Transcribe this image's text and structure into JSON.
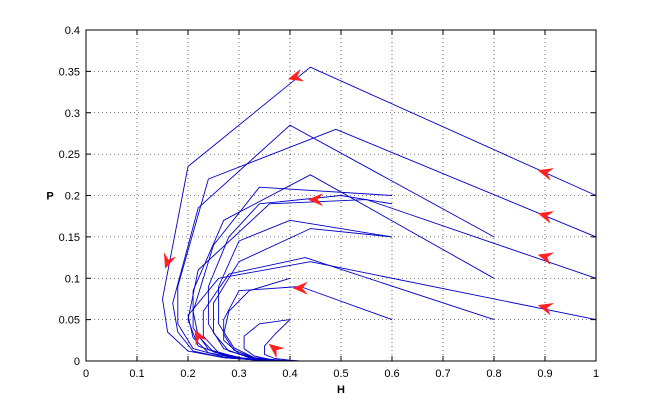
{
  "chart_data": {
    "type": "line",
    "title": "",
    "xlabel": "H",
    "ylabel": "P",
    "xlim": [
      0,
      1
    ],
    "ylim": [
      0,
      0.4
    ],
    "xticks": [
      "0",
      "0.1",
      "0.2",
      "0.3",
      "0.4",
      "0.5",
      "0.6",
      "0.7",
      "0.8",
      "0.9",
      "1"
    ],
    "yticks": [
      "0",
      "0.05",
      "0.1",
      "0.15",
      "0.2",
      "0.25",
      "0.3",
      "0.35",
      "0.4"
    ],
    "grid": true,
    "grid_style": "dotted",
    "legend": "none",
    "series_color": "#0000cc",
    "arrow_color": "#ff2020",
    "series": [
      {
        "x": [
          1.0,
          0.44,
          0.2,
          0.15,
          0.16,
          0.2,
          0.27,
          0.34,
          0.4,
          0.42
        ],
        "y": [
          0.2,
          0.355,
          0.235,
          0.075,
          0.035,
          0.012,
          0.004,
          0.001,
          0.0,
          0.0
        ]
      },
      {
        "x": [
          1.0,
          0.49,
          0.24,
          0.18,
          0.18,
          0.21,
          0.27,
          0.34,
          0.41
        ],
        "y": [
          0.15,
          0.28,
          0.22,
          0.09,
          0.045,
          0.015,
          0.005,
          0.001,
          0.0
        ]
      },
      {
        "x": [
          1.0,
          0.55,
          0.36,
          0.22,
          0.2,
          0.22,
          0.28,
          0.35,
          0.41
        ],
        "y": [
          0.1,
          0.195,
          0.19,
          0.11,
          0.05,
          0.018,
          0.005,
          0.001,
          0.0
        ]
      },
      {
        "x": [
          1.0,
          0.44,
          0.26,
          0.2,
          0.21,
          0.24,
          0.3,
          0.36,
          0.41
        ],
        "y": [
          0.05,
          0.12,
          0.1,
          0.055,
          0.028,
          0.01,
          0.003,
          0.0,
          0.0
        ]
      },
      {
        "x": [
          0.8,
          0.4,
          0.22,
          0.17,
          0.18,
          0.21,
          0.27,
          0.34,
          0.4
        ],
        "y": [
          0.15,
          0.285,
          0.185,
          0.07,
          0.035,
          0.012,
          0.004,
          0.001,
          0.0
        ]
      },
      {
        "x": [
          0.8,
          0.44,
          0.27,
          0.21,
          0.21,
          0.24,
          0.3,
          0.36,
          0.41
        ],
        "y": [
          0.1,
          0.225,
          0.17,
          0.085,
          0.04,
          0.014,
          0.004,
          0.001,
          0.0
        ]
      },
      {
        "x": [
          0.8,
          0.43,
          0.28,
          0.23,
          0.23,
          0.26,
          0.31,
          0.37,
          0.41
        ],
        "y": [
          0.05,
          0.125,
          0.105,
          0.06,
          0.03,
          0.01,
          0.003,
          0.0,
          0.0
        ]
      },
      {
        "x": [
          0.6,
          0.34,
          0.25,
          0.21,
          0.22,
          0.25,
          0.3,
          0.36,
          0.41
        ],
        "y": [
          0.2,
          0.21,
          0.14,
          0.06,
          0.03,
          0.011,
          0.003,
          0.0,
          0.0
        ]
      },
      {
        "x": [
          0.6,
          0.5,
          0.34,
          0.28,
          0.24,
          0.24,
          0.27,
          0.32,
          0.37,
          0.41
        ],
        "y": [
          0.19,
          0.2,
          0.19,
          0.15,
          0.09,
          0.045,
          0.015,
          0.004,
          0.001,
          0.0
        ]
      },
      {
        "x": [
          0.6,
          0.44,
          0.3,
          0.25,
          0.25,
          0.28,
          0.33,
          0.38,
          0.41
        ],
        "y": [
          0.15,
          0.16,
          0.12,
          0.07,
          0.034,
          0.012,
          0.003,
          0.0,
          0.0
        ]
      },
      {
        "x": [
          0.6,
          0.4,
          0.3,
          0.26,
          0.26,
          0.29,
          0.33,
          0.38,
          0.41
        ],
        "y": [
          0.15,
          0.17,
          0.145,
          0.09,
          0.045,
          0.016,
          0.004,
          0.001,
          0.0
        ]
      },
      {
        "x": [
          0.6,
          0.42,
          0.3,
          0.27,
          0.27,
          0.3,
          0.34,
          0.38,
          0.41
        ],
        "y": [
          0.05,
          0.09,
          0.085,
          0.05,
          0.025,
          0.009,
          0.002,
          0.0,
          0.0
        ]
      },
      {
        "x": [
          0.4,
          0.32,
          0.28,
          0.27,
          0.29,
          0.33,
          0.37,
          0.41
        ],
        "y": [
          0.1,
          0.085,
          0.06,
          0.032,
          0.013,
          0.004,
          0.001,
          0.0
        ]
      },
      {
        "x": [
          0.4,
          0.34,
          0.31,
          0.31,
          0.33,
          0.36,
          0.39,
          0.42
        ],
        "y": [
          0.05,
          0.045,
          0.03,
          0.015,
          0.006,
          0.002,
          0.0,
          0.0
        ]
      },
      {
        "x": [
          0.4,
          0.37,
          0.35,
          0.35,
          0.37,
          0.4,
          0.42
        ],
        "y": [
          0.05,
          0.032,
          0.018,
          0.008,
          0.003,
          0.001,
          0.0
        ]
      }
    ],
    "arrows": [
      {
        "x": 0.41,
        "y": 0.343,
        "dx": -1,
        "dy": -0.28
      },
      {
        "x": 0.9,
        "y": 0.228,
        "dx": -1,
        "dy": 0.28
      },
      {
        "x": 0.9,
        "y": 0.176,
        "dx": -1,
        "dy": 0.28
      },
      {
        "x": 0.9,
        "y": 0.126,
        "dx": -1,
        "dy": 0.28
      },
      {
        "x": 0.9,
        "y": 0.065,
        "dx": -1,
        "dy": 0.28
      },
      {
        "x": 0.45,
        "y": 0.195,
        "dx": -1,
        "dy": 0.0
      },
      {
        "x": 0.42,
        "y": 0.088,
        "dx": -1,
        "dy": 0.0
      },
      {
        "x": 0.16,
        "y": 0.12,
        "dx": -0.35,
        "dy": -1
      },
      {
        "x": 0.22,
        "y": 0.03,
        "dx": -0.5,
        "dy": 1
      },
      {
        "x": 0.37,
        "y": 0.015,
        "dx": -1,
        "dy": 0.8
      }
    ]
  }
}
